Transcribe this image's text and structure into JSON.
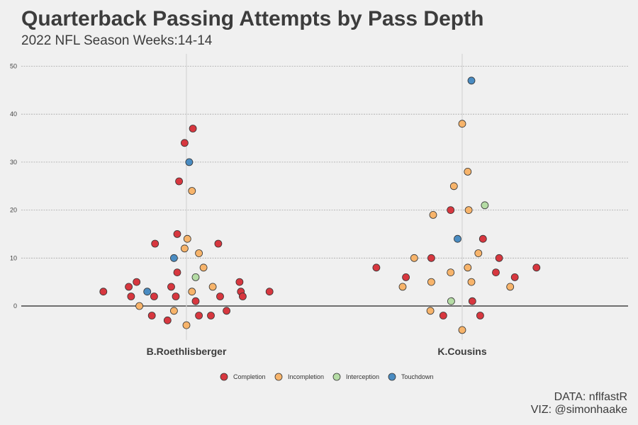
{
  "chart_data": {
    "type": "scatter",
    "title": "Quarterback Passing Attempts by Pass Depth",
    "subtitle": "2022 NFL Season Weeks:14-14",
    "caption_lines": [
      "DATA: nflfastR",
      "VIZ: @simonhaake"
    ],
    "categories": [
      "B.Roethlisberger",
      "K.Cousins"
    ],
    "ylim": [
      -8,
      52
    ],
    "yticks": [
      0,
      10,
      20,
      30,
      40,
      50
    ],
    "ytick_labels": [
      "0",
      "10",
      "20",
      "30",
      "40",
      "50"
    ],
    "legend": [
      "Completion",
      "Incompletion",
      "Interception",
      "Touchdown"
    ],
    "colors": {
      "Completion": "#d7373f",
      "Incompletion": "#f7b46b",
      "Interception": "#b5dca5",
      "Touchdown": "#4a8cc2"
    },
    "points": [
      {
        "cat": "B.Roethlisberger",
        "jitter": -0.18,
        "y": 3,
        "type": "Completion"
      },
      {
        "cat": "B.Roethlisberger",
        "jitter": -0.125,
        "y": 4,
        "type": "Completion"
      },
      {
        "cat": "B.Roethlisberger",
        "jitter": -0.12,
        "y": 2,
        "type": "Completion"
      },
      {
        "cat": "B.Roethlisberger",
        "jitter": -0.108,
        "y": 5,
        "type": "Completion"
      },
      {
        "cat": "B.Roethlisberger",
        "jitter": -0.102,
        "y": 0,
        "type": "Incompletion"
      },
      {
        "cat": "B.Roethlisberger",
        "jitter": -0.085,
        "y": 3,
        "type": "Touchdown"
      },
      {
        "cat": "B.Roethlisberger",
        "jitter": -0.075,
        "y": -2,
        "type": "Completion"
      },
      {
        "cat": "B.Roethlisberger",
        "jitter": -0.07,
        "y": 2,
        "type": "Completion"
      },
      {
        "cat": "B.Roethlisberger",
        "jitter": -0.068,
        "y": 13,
        "type": "Completion"
      },
      {
        "cat": "B.Roethlisberger",
        "jitter": -0.041,
        "y": -3,
        "type": "Completion"
      },
      {
        "cat": "B.Roethlisberger",
        "jitter": -0.033,
        "y": 4,
        "type": "Completion"
      },
      {
        "cat": "B.Roethlisberger",
        "jitter": -0.027,
        "y": -1,
        "type": "Incompletion"
      },
      {
        "cat": "B.Roethlisberger",
        "jitter": -0.027,
        "y": 10,
        "type": "Touchdown"
      },
      {
        "cat": "B.Roethlisberger",
        "jitter": -0.023,
        "y": 2,
        "type": "Completion"
      },
      {
        "cat": "B.Roethlisberger",
        "jitter": -0.02,
        "y": 7,
        "type": "Completion"
      },
      {
        "cat": "B.Roethlisberger",
        "jitter": -0.02,
        "y": 15,
        "type": "Completion"
      },
      {
        "cat": "B.Roethlisberger",
        "jitter": -0.016,
        "y": 26,
        "type": "Completion"
      },
      {
        "cat": "B.Roethlisberger",
        "jitter": -0.004,
        "y": 34,
        "type": "Completion"
      },
      {
        "cat": "B.Roethlisberger",
        "jitter": -0.004,
        "y": 12,
        "type": "Incompletion"
      },
      {
        "cat": "B.Roethlisberger",
        "jitter": 0.0,
        "y": -4,
        "type": "Incompletion"
      },
      {
        "cat": "B.Roethlisberger",
        "jitter": 0.002,
        "y": 14,
        "type": "Incompletion"
      },
      {
        "cat": "B.Roethlisberger",
        "jitter": 0.006,
        "y": 30,
        "type": "Touchdown"
      },
      {
        "cat": "B.Roethlisberger",
        "jitter": 0.012,
        "y": 24,
        "type": "Incompletion"
      },
      {
        "cat": "B.Roethlisberger",
        "jitter": 0.012,
        "y": 3,
        "type": "Incompletion"
      },
      {
        "cat": "B.Roethlisberger",
        "jitter": 0.014,
        "y": 37,
        "type": "Completion"
      },
      {
        "cat": "B.Roethlisberger",
        "jitter": 0.02,
        "y": 6,
        "type": "Interception"
      },
      {
        "cat": "B.Roethlisberger",
        "jitter": 0.02,
        "y": 1,
        "type": "Completion"
      },
      {
        "cat": "B.Roethlisberger",
        "jitter": 0.027,
        "y": 11,
        "type": "Incompletion"
      },
      {
        "cat": "B.Roethlisberger",
        "jitter": 0.027,
        "y": -2,
        "type": "Completion"
      },
      {
        "cat": "B.Roethlisberger",
        "jitter": 0.037,
        "y": 8,
        "type": "Incompletion"
      },
      {
        "cat": "B.Roethlisberger",
        "jitter": 0.053,
        "y": -2,
        "type": "Completion"
      },
      {
        "cat": "B.Roethlisberger",
        "jitter": 0.057,
        "y": 4,
        "type": "Incompletion"
      },
      {
        "cat": "B.Roethlisberger",
        "jitter": 0.069,
        "y": 13,
        "type": "Completion"
      },
      {
        "cat": "B.Roethlisberger",
        "jitter": 0.073,
        "y": 2,
        "type": "Completion"
      },
      {
        "cat": "B.Roethlisberger",
        "jitter": 0.087,
        "y": -1,
        "type": "Completion"
      },
      {
        "cat": "B.Roethlisberger",
        "jitter": 0.115,
        "y": 5,
        "type": "Completion"
      },
      {
        "cat": "B.Roethlisberger",
        "jitter": 0.118,
        "y": 3,
        "type": "Completion"
      },
      {
        "cat": "B.Roethlisberger",
        "jitter": 0.122,
        "y": 2,
        "type": "Completion"
      },
      {
        "cat": "B.Roethlisberger",
        "jitter": 0.18,
        "y": 3,
        "type": "Completion"
      },
      {
        "cat": "K.Cousins",
        "jitter": -0.186,
        "y": 8,
        "type": "Completion"
      },
      {
        "cat": "K.Cousins",
        "jitter": -0.129,
        "y": 4,
        "type": "Incompletion"
      },
      {
        "cat": "K.Cousins",
        "jitter": -0.122,
        "y": 6,
        "type": "Completion"
      },
      {
        "cat": "K.Cousins",
        "jitter": -0.104,
        "y": 10,
        "type": "Incompletion"
      },
      {
        "cat": "K.Cousins",
        "jitter": -0.067,
        "y": 10,
        "type": "Completion"
      },
      {
        "cat": "K.Cousins",
        "jitter": -0.067,
        "y": 5,
        "type": "Incompletion"
      },
      {
        "cat": "K.Cousins",
        "jitter": -0.069,
        "y": -1,
        "type": "Incompletion"
      },
      {
        "cat": "K.Cousins",
        "jitter": -0.063,
        "y": 19,
        "type": "Incompletion"
      },
      {
        "cat": "K.Cousins",
        "jitter": -0.041,
        "y": -2,
        "type": "Completion"
      },
      {
        "cat": "K.Cousins",
        "jitter": -0.025,
        "y": 20,
        "type": "Completion"
      },
      {
        "cat": "K.Cousins",
        "jitter": -0.025,
        "y": 7,
        "type": "Incompletion"
      },
      {
        "cat": "K.Cousins",
        "jitter": -0.024,
        "y": 1,
        "type": "Interception"
      },
      {
        "cat": "K.Cousins",
        "jitter": -0.018,
        "y": 25,
        "type": "Incompletion"
      },
      {
        "cat": "K.Cousins",
        "jitter": -0.01,
        "y": 14,
        "type": "Touchdown"
      },
      {
        "cat": "K.Cousins",
        "jitter": 0.0,
        "y": 38,
        "type": "Incompletion"
      },
      {
        "cat": "K.Cousins",
        "jitter": 0.0,
        "y": -5,
        "type": "Incompletion"
      },
      {
        "cat": "K.Cousins",
        "jitter": 0.012,
        "y": 28,
        "type": "Incompletion"
      },
      {
        "cat": "K.Cousins",
        "jitter": 0.012,
        "y": 8,
        "type": "Incompletion"
      },
      {
        "cat": "K.Cousins",
        "jitter": 0.014,
        "y": 20,
        "type": "Incompletion"
      },
      {
        "cat": "K.Cousins",
        "jitter": 0.02,
        "y": 5,
        "type": "Incompletion"
      },
      {
        "cat": "K.Cousins",
        "jitter": 0.02,
        "y": 47,
        "type": "Touchdown"
      },
      {
        "cat": "K.Cousins",
        "jitter": 0.022,
        "y": 1,
        "type": "Completion"
      },
      {
        "cat": "K.Cousins",
        "jitter": 0.035,
        "y": 11,
        "type": "Incompletion"
      },
      {
        "cat": "K.Cousins",
        "jitter": 0.039,
        "y": -2,
        "type": "Completion"
      },
      {
        "cat": "K.Cousins",
        "jitter": 0.045,
        "y": 14,
        "type": "Completion"
      },
      {
        "cat": "K.Cousins",
        "jitter": 0.049,
        "y": 21,
        "type": "Interception"
      },
      {
        "cat": "K.Cousins",
        "jitter": 0.073,
        "y": 7,
        "type": "Completion"
      },
      {
        "cat": "K.Cousins",
        "jitter": 0.08,
        "y": 10,
        "type": "Completion"
      },
      {
        "cat": "K.Cousins",
        "jitter": 0.104,
        "y": 4,
        "type": "Incompletion"
      },
      {
        "cat": "K.Cousins",
        "jitter": 0.114,
        "y": 6,
        "type": "Completion"
      },
      {
        "cat": "K.Cousins",
        "jitter": 0.161,
        "y": 8,
        "type": "Completion"
      }
    ]
  }
}
